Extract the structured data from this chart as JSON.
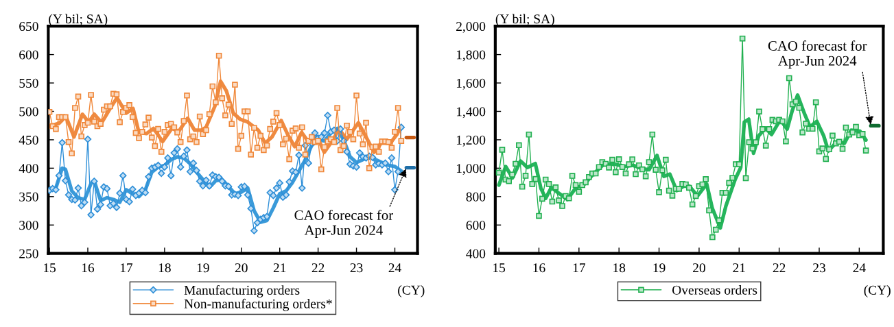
{
  "chart_data": [
    {
      "type": "line",
      "xlabel": "(CY)",
      "ylabel": "(Y bil; SA)",
      "legend": "bottom",
      "x": [
        15,
        15.083,
        15.167,
        15.25,
        15.333,
        15.417,
        15.5,
        15.583,
        15.667,
        15.75,
        15.833,
        15.917,
        16,
        16.083,
        16.167,
        16.25,
        16.333,
        16.417,
        16.5,
        16.583,
        16.667,
        16.75,
        16.833,
        16.917,
        17,
        17.083,
        17.167,
        17.25,
        17.333,
        17.417,
        17.5,
        17.583,
        17.667,
        17.75,
        17.833,
        17.917,
        18,
        18.083,
        18.167,
        18.25,
        18.333,
        18.417,
        18.5,
        18.583,
        18.667,
        18.75,
        18.833,
        18.917,
        19,
        19.083,
        19.167,
        19.25,
        19.333,
        19.417,
        19.5,
        19.583,
        19.667,
        19.75,
        19.833,
        19.917,
        20,
        20.083,
        20.167,
        20.25,
        20.333,
        20.417,
        20.5,
        20.583,
        20.667,
        20.75,
        20.833,
        20.917,
        21,
        21.083,
        21.167,
        21.25,
        21.333,
        21.417,
        21.5,
        21.583,
        21.667,
        21.75,
        21.833,
        21.917,
        22,
        22.083,
        22.167,
        22.25,
        22.333,
        22.417,
        22.5,
        22.583,
        22.667,
        22.75,
        22.833,
        22.917,
        23,
        23.083,
        23.167,
        23.25,
        23.333,
        23.417,
        23.5,
        23.583,
        23.667,
        23.75,
        23.833,
        23.917,
        24,
        24.083,
        24.167
      ],
      "xlim": [
        14.97,
        24.59
      ],
      "xticks": [
        15,
        16,
        17,
        18,
        19,
        20,
        21,
        22,
        23,
        24
      ],
      "ylim": [
        250,
        650
      ],
      "yticks": [
        250,
        300,
        350,
        400,
        450,
        500,
        550,
        600,
        650
      ],
      "series": [
        {
          "color": "#3a9ad9",
          "marker": "none",
          "x": [
            15,
            15.167,
            15.333,
            15.417,
            15.583,
            15.75,
            15.917,
            16.083,
            16.167,
            16.25,
            16.333,
            16.5,
            16.667,
            16.833,
            17,
            17.167,
            17.333,
            17.5,
            17.667,
            17.833,
            18,
            18.167,
            18.333,
            18.5,
            18.667,
            18.833,
            19,
            19.167,
            19.333,
            19.5,
            19.667,
            19.833,
            20,
            20.167,
            20.333,
            20.5,
            20.667,
            20.833,
            21,
            21.167,
            21.333,
            21.5,
            21.667,
            21.833,
            22,
            22.167,
            22.333,
            22.5,
            22.667,
            22.833,
            23,
            23.167,
            23.333,
            23.5,
            23.667,
            23.833,
            24,
            24.167
          ],
          "values": [
            365,
            365,
            400,
            398,
            360,
            348,
            345,
            373,
            378,
            360,
            343,
            348,
            345,
            340,
            362,
            355,
            350,
            362,
            393,
            402,
            405,
            415,
            420,
            418,
            408,
            393,
            380,
            366,
            378,
            380,
            368,
            355,
            358,
            365,
            325,
            305,
            308,
            330,
            355,
            360,
            375,
            395,
            415,
            440,
            450,
            448,
            462,
            470,
            450,
            420,
            410,
            415,
            420,
            415,
            410,
            405,
            403,
            395
          ]
        },
        {
          "color": "#ef8a40",
          "marker": "none",
          "x": [
            15,
            15.25,
            15.43,
            15.64,
            15.86,
            16.02,
            16.17,
            16.36,
            16.58,
            16.76,
            17.0,
            17.18,
            17.33,
            17.53,
            17.71,
            17.95,
            18.19,
            18.37,
            18.6,
            18.78,
            18.96,
            19.08,
            19.31,
            19.46,
            19.61,
            19.79,
            19.97,
            20.15,
            20.44,
            20.62,
            20.8,
            21.04,
            21.21,
            21.39,
            21.57,
            21.72,
            21.98,
            22.16,
            22.4,
            22.54,
            22.75,
            23.05,
            23.28,
            23.46,
            23.64,
            23.88,
            24.05,
            24.167
          ],
          "values": [
            474,
            479,
            491,
            455,
            495,
            481,
            495,
            480,
            505,
            524,
            497,
            505,
            463,
            461,
            470,
            447,
            470,
            465,
            488,
            467,
            467,
            472,
            509,
            553,
            536,
            497,
            486,
            482,
            467,
            444,
            455,
            484,
            459,
            438,
            463,
            449,
            455,
            428,
            451,
            469,
            451,
            480,
            451,
            428,
            444,
            444,
            459,
            474
          ]
        },
        {
          "name": "Manufacturing orders",
          "color": "#2e8fd8",
          "marker": "diamond",
          "values": [
            361,
            364,
            362,
            387,
            445,
            378,
            353,
            345,
            344,
            365,
            334,
            340,
            451,
            318,
            377,
            328,
            336,
            367,
            364,
            334,
            338,
            331,
            356,
            387,
            345,
            341,
            363,
            352,
            356,
            361,
            357,
            385,
            400,
            402,
            405,
            391,
            402,
            418,
            387,
            427,
            434,
            402,
            421,
            432,
            394,
            409,
            396,
            377,
            369,
            379,
            369,
            388,
            385,
            384,
            377,
            369,
            368,
            353,
            354,
            352,
            367,
            368,
            353,
            329,
            290,
            304,
            310,
            313,
            315,
            357,
            352,
            365,
            374,
            349,
            353,
            376,
            395,
            393,
            423,
            365,
            440,
            409,
            444,
            462,
            453,
            455,
            462,
            493,
            464,
            467,
            448,
            469,
            448,
            429,
            407,
            404,
            402,
            427,
            420,
            418,
            421,
            419,
            406,
            408,
            406,
            409,
            394,
            418,
            362,
            394,
            472
          ]
        },
        {
          "name": "Non-manufacturing orders*",
          "color": "#f0883a",
          "marker": "square",
          "values": [
            499,
            474,
            469,
            490,
            490,
            490,
            446,
            426,
            506,
            526,
            456,
            476,
            480,
            529,
            482,
            474,
            478,
            503,
            509,
            509,
            531,
            530,
            481,
            499,
            506,
            511,
            490,
            462,
            453,
            464,
            477,
            489,
            454,
            439,
            469,
            429,
            464,
            476,
            478,
            472,
            463,
            446,
            483,
            528,
            451,
            456,
            446,
            491,
            460,
            467,
            495,
            544,
            516,
            598,
            523,
            493,
            512,
            478,
            547,
            434,
            457,
            500,
            500,
            424,
            471,
            436,
            457,
            432,
            440,
            469,
            482,
            497,
            476,
            442,
            452,
            416,
            466,
            470,
            436,
            472,
            424,
            448,
            455,
            446,
            448,
            398,
            437,
            447,
            451,
            446,
            506,
            432,
            439,
            475,
            464,
            451,
            528,
            461,
            442,
            480,
            400,
            437,
            438,
            429,
            447,
            447,
            446,
            436,
            464,
            506,
            448
          ]
        },
        {
          "color": "#1f6fa8",
          "marker": "none",
          "x": [
            24.3,
            24.5
          ],
          "values": [
            401,
            401
          ]
        },
        {
          "color": "#c65911",
          "marker": "none",
          "x": [
            24.3,
            24.5
          ],
          "values": [
            454,
            454
          ]
        }
      ],
      "annotations": [
        {
          "text": "CAO forecast for\nApr-Jun 2024",
          "x": 24.3,
          "y": 401
        }
      ]
    },
    {
      "type": "line",
      "xlabel": "(CY)",
      "ylabel": "(Y bil; SA)",
      "legend": "bottom",
      "x": [
        15,
        15.083,
        15.167,
        15.25,
        15.333,
        15.417,
        15.5,
        15.583,
        15.667,
        15.75,
        15.833,
        15.917,
        16,
        16.083,
        16.167,
        16.25,
        16.333,
        16.417,
        16.5,
        16.583,
        16.667,
        16.75,
        16.833,
        16.917,
        17,
        17.083,
        17.167,
        17.25,
        17.333,
        17.417,
        17.5,
        17.583,
        17.667,
        17.75,
        17.833,
        17.917,
        18,
        18.083,
        18.167,
        18.25,
        18.333,
        18.417,
        18.5,
        18.583,
        18.667,
        18.75,
        18.833,
        18.917,
        19,
        19.083,
        19.167,
        19.25,
        19.333,
        19.417,
        19.5,
        19.583,
        19.667,
        19.75,
        19.833,
        19.917,
        20,
        20.083,
        20.167,
        20.25,
        20.333,
        20.417,
        20.5,
        20.583,
        20.667,
        20.75,
        20.833,
        20.917,
        21,
        21.083,
        21.167,
        21.25,
        21.333,
        21.417,
        21.5,
        21.583,
        21.667,
        21.75,
        21.833,
        21.917,
        22,
        22.083,
        22.167,
        22.25,
        22.333,
        22.417,
        22.5,
        22.583,
        22.667,
        22.75,
        22.833,
        22.917,
        23,
        23.083,
        23.167,
        23.25,
        23.333,
        23.417,
        23.5,
        23.583,
        23.667,
        23.75,
        23.833,
        23.917,
        24,
        24.083,
        24.167
      ],
      "xlim": [
        14.91,
        24.6
      ],
      "xticks": [
        15,
        16,
        17,
        18,
        19,
        20,
        21,
        22,
        23,
        24
      ],
      "ylim": [
        400,
        2000
      ],
      "yticks": [
        400,
        600,
        800,
        {
          "value": 1000,
          "label": "1,000"
        },
        {
          "value": 1200,
          "label": "1,200"
        },
        {
          "value": 1400,
          "label": "1,400"
        },
        {
          "value": 1600,
          "label": "1,600"
        },
        {
          "value": 1800,
          "label": "1,800"
        },
        {
          "value": 2000,
          "label": "2,000"
        }
      ],
      "series": [
        {
          "color": "#25b55c",
          "marker": "none",
          "x": [
            15,
            15.17,
            15.34,
            15.54,
            15.71,
            15.91,
            16.05,
            16.17,
            16.31,
            16.48,
            16.71,
            16.93,
            17.1,
            17.33,
            17.62,
            17.9,
            18.13,
            18.36,
            18.58,
            18.75,
            18.95,
            19.12,
            19.27,
            19.44,
            19.61,
            19.76,
            19.96,
            20.19,
            20.33,
            20.53,
            20.67,
            20.9,
            21.04,
            21.13,
            21.24,
            21.36,
            21.49,
            21.66,
            21.81,
            22.03,
            22.2,
            22.32,
            22.46,
            22.63,
            22.77,
            22.94,
            23.11,
            23.23,
            23.45,
            23.63,
            23.8,
            24.02,
            24.167
          ],
          "values": [
            881,
            1012,
            932,
            1051,
            1005,
            1033,
            858,
            788,
            865,
            827,
            780,
            865,
            876,
            950,
            1028,
            1028,
            1012,
            1020,
            997,
            989,
            1090,
            943,
            958,
            842,
            873,
            873,
            804,
            889,
            718,
            579,
            734,
            920,
            1005,
            1325,
            1345,
            1105,
            1229,
            1283,
            1237,
            1342,
            1275,
            1399,
            1515,
            1385,
            1291,
            1330,
            1229,
            1121,
            1190,
            1175,
            1268,
            1260,
            1198
          ]
        },
        {
          "name": "Overseas orders",
          "color": "#21b050",
          "marker": "square",
          "values": [
            969,
            1130,
            920,
            909,
            955,
            1031,
            1162,
            870,
            947,
            1237,
            889,
            924,
            664,
            785,
            920,
            889,
            765,
            865,
            773,
            734,
            804,
            788,
            946,
            881,
            834,
            881,
            901,
            938,
            963,
            963,
            1008,
            1043,
            1031,
            1005,
            1059,
            972,
            1063,
            1008,
            963,
            1028,
            1062,
            958,
            1020,
            992,
            943,
            1043,
            1237,
            989,
            831,
            985,
            1059,
            842,
            807,
            855,
            855,
            889,
            886,
            862,
            745,
            804,
            873,
            886,
            923,
            703,
            514,
            567,
            633,
            827,
            827,
            896,
            932,
            1028,
            1028,
            1913,
            930,
            1183,
            1139,
            1183,
            1399,
            1275,
            1159,
            1275,
            1340,
            1330,
            1340,
            1330,
            1189,
            1634,
            1450,
            1469,
            1425,
            1252,
            1314,
            1278,
            1278,
            1464,
            1118,
            1139,
            1065,
            1133,
            1229,
            1175,
            1186,
            1136,
            1286,
            1237,
            1252,
            1291,
            1232,
            1241,
            1124
          ]
        },
        {
          "color": "#0e6b30",
          "marker": "none",
          "x": [
            24.29,
            24.49
          ],
          "values": [
            1299,
            1299
          ]
        }
      ],
      "annotations": [
        {
          "text": "CAO forecast for\nApr-Jun 2024",
          "x": 24.29,
          "y": 1299
        }
      ]
    }
  ]
}
